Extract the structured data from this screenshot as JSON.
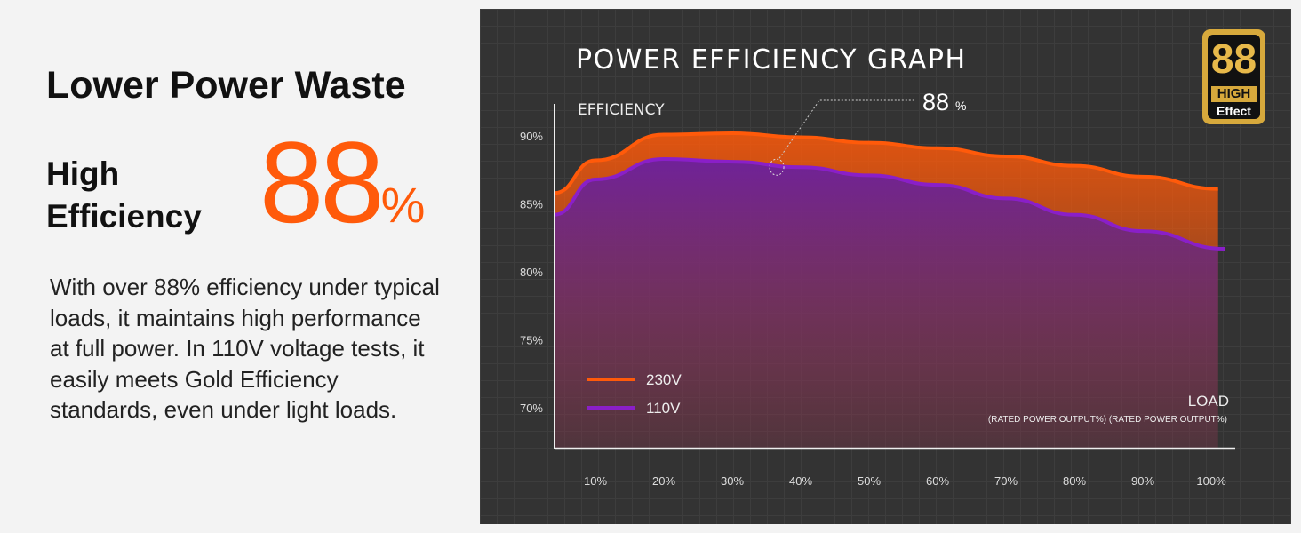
{
  "left": {
    "heading": "Lower Power Waste",
    "subheading_line1": "High",
    "subheading_line2": "Efficiency",
    "big_value": "88",
    "big_unit": "%",
    "description": "With over 88% efficiency under typical loads, it maintains high performance at full power. In 110V voltage tests, it easily meets Gold Efficiency standards, even under light loads."
  },
  "badge": {
    "number": "88",
    "line1": "HIGH",
    "line2": "Effect",
    "color": "#d7a93c"
  },
  "chart_data": {
    "type": "area",
    "title": "POWER EFFICIENCY GRAPH",
    "ylabel": "EFFICIENCY",
    "xlabel": "LOAD",
    "xlabel_sub": "(RATED POWER OUTPUT%) (RATED POWER OUTPUT%)",
    "yticks": [
      "90%",
      "85%",
      "80%",
      "75%",
      "70%"
    ],
    "ytick_values": [
      90,
      85,
      80,
      75,
      70
    ],
    "xticks": [
      "10%",
      "20%",
      "30%",
      "40%",
      "50%",
      "60%",
      "70%",
      "80%",
      "90%",
      "100%"
    ],
    "xtick_values": [
      10,
      20,
      30,
      40,
      50,
      60,
      70,
      80,
      90,
      100
    ],
    "ylim": [
      67,
      92.4
    ],
    "xlim": [
      3.5,
      104
    ],
    "grid": true,
    "legend": "bottom-left",
    "annotation": {
      "value": "88",
      "unit": "%",
      "x": 36.5,
      "y": 87.7
    },
    "series": [
      {
        "name": "230V",
        "color": "#ff5a0a",
        "x": [
          4,
          10,
          20,
          30,
          40,
          50,
          60,
          70,
          80,
          90,
          101
        ],
        "values": [
          85.8,
          88.2,
          90.1,
          90.2,
          89.9,
          89.5,
          89.1,
          88.5,
          87.8,
          87.0,
          86.1
        ]
      },
      {
        "name": "110V",
        "color": "#8a1fc8",
        "x": [
          4,
          10,
          20,
          30,
          40,
          50,
          60,
          70,
          80,
          90,
          102
        ],
        "values": [
          84.2,
          86.8,
          88.3,
          88.1,
          87.7,
          87.1,
          86.4,
          85.4,
          84.2,
          83.0,
          81.7
        ]
      }
    ]
  }
}
